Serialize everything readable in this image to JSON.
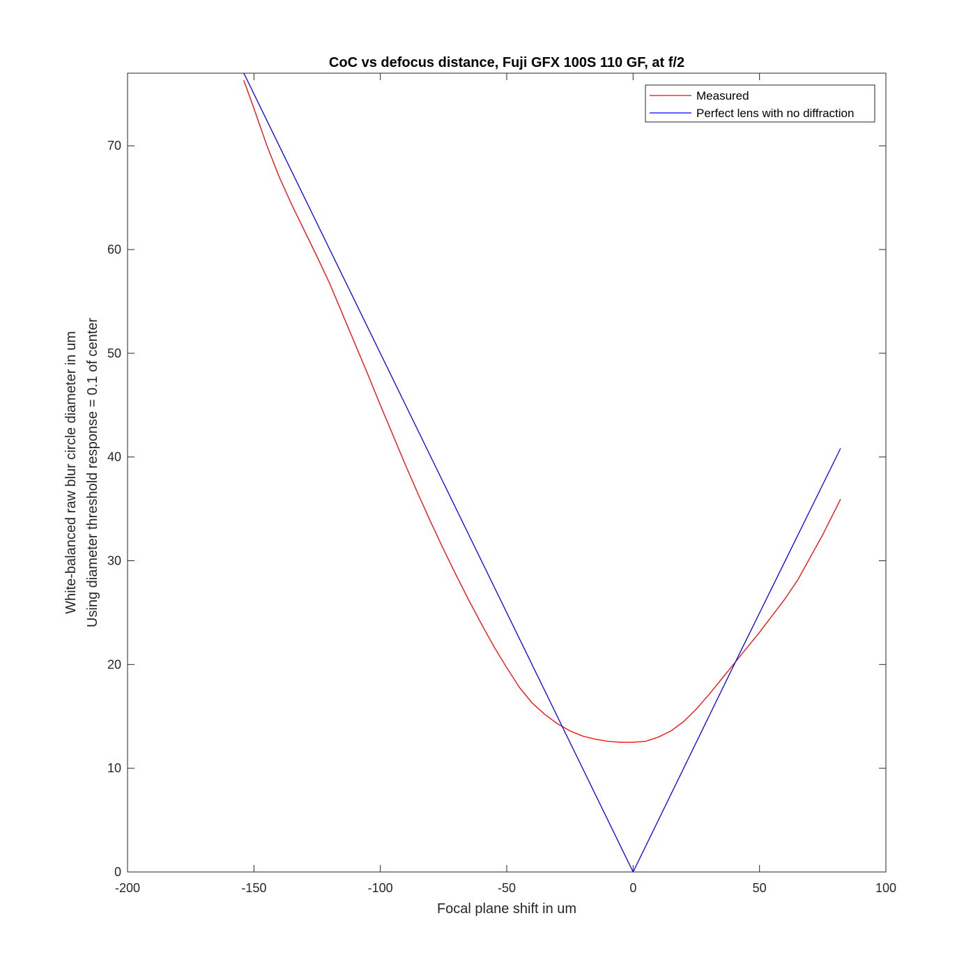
{
  "chart_data": {
    "type": "line",
    "title": "CoC vs defocus distance, Fuji GFX 100S 110 GF, at f/2",
    "xlabel": "Focal plane shift in um",
    "ylabel": [
      "White-balanced raw blur circle diameter in um",
      "Using diameter threshold response = 0.1 of center"
    ],
    "xlim": [
      -200,
      100
    ],
    "ylim": [
      0,
      77
    ],
    "xticks": [
      -200,
      -150,
      -100,
      -50,
      0,
      50,
      100
    ],
    "yticks": [
      0,
      10,
      20,
      30,
      40,
      50,
      60,
      70
    ],
    "xtick_labels": [
      "-200",
      "-150",
      "-100",
      "-50",
      "0",
      "50",
      "100"
    ],
    "ytick_labels": [
      "0",
      "10",
      "20",
      "30",
      "40",
      "50",
      "60",
      "70"
    ],
    "legend_position": "top-right",
    "grid": false,
    "series": [
      {
        "name": "Measured",
        "color": "#ff0000",
        "x": [
          -154,
          -150,
          -145,
          -140,
          -135,
          -130,
          -125,
          -120,
          -115,
          -110,
          -105,
          -100,
          -95,
          -90,
          -85,
          -80,
          -75,
          -70,
          -65,
          -60,
          -55,
          -50,
          -45,
          -40,
          -35,
          -30,
          -25,
          -20,
          -15,
          -10,
          -5,
          0,
          5,
          10,
          15,
          20,
          25,
          30,
          35,
          40,
          45,
          50,
          55,
          60,
          65,
          70,
          75,
          82
        ],
        "y": [
          76.3,
          73.6,
          70.1,
          67.0,
          64.3,
          61.8,
          59.3,
          56.7,
          53.8,
          50.9,
          48.0,
          45.0,
          42.1,
          39.2,
          36.4,
          33.7,
          31.1,
          28.6,
          26.2,
          23.9,
          21.7,
          19.7,
          17.8,
          16.3,
          15.2,
          14.3,
          13.6,
          13.1,
          12.8,
          12.6,
          12.5,
          12.5,
          12.6,
          13.0,
          13.6,
          14.5,
          15.7,
          17.1,
          18.6,
          20.1,
          21.6,
          23.1,
          24.7,
          26.3,
          28.1,
          30.3,
          32.5,
          35.9
        ]
      },
      {
        "name": "Perfect lens with no diffraction",
        "color": "#0000ff",
        "x": [
          -154,
          -110,
          0,
          42,
          82
        ],
        "y": [
          77.0,
          55.0,
          0,
          21.0,
          40.8
        ]
      }
    ]
  }
}
